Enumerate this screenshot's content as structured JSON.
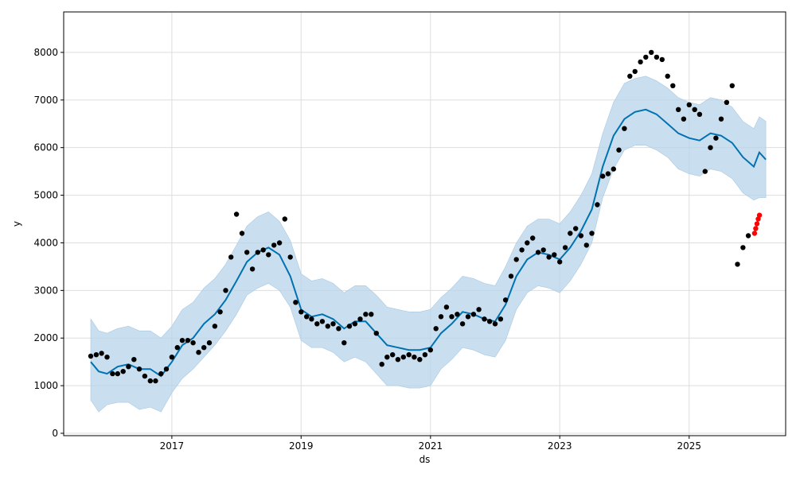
{
  "chart_data": {
    "type": "line",
    "title": "",
    "xlabel": "ds",
    "ylabel": "y",
    "xlim": [
      "2015-05-01",
      "2026-06-30"
    ],
    "ylim": [
      -50,
      8850
    ],
    "x_ticks": [
      "2017",
      "2019",
      "2021",
      "2023",
      "2025"
    ],
    "y_ticks": [
      0,
      1000,
      2000,
      3000,
      4000,
      5000,
      6000,
      7000,
      8000
    ],
    "grid": true,
    "legend": "none",
    "colors": {
      "forecast_line": "#0072B2",
      "uncertainty_band": "#b7d4ea",
      "observed_points": "#000000",
      "recent_points": "#ff0000"
    },
    "series": [
      {
        "kind": "forecast",
        "x": [
          "2015-10-01",
          "2015-11-15",
          "2016-01-01",
          "2016-03-01",
          "2016-05-01",
          "2016-07-01",
          "2016-09-01",
          "2016-11-01",
          "2017-01-01",
          "2017-03-01",
          "2017-05-01",
          "2017-07-01",
          "2017-09-01",
          "2017-11-01",
          "2018-01-01",
          "2018-03-01",
          "2018-05-01",
          "2018-07-01",
          "2018-09-01",
          "2018-11-01",
          "2019-01-01",
          "2019-03-01",
          "2019-05-01",
          "2019-07-01",
          "2019-09-01",
          "2019-11-01",
          "2020-01-01",
          "2020-03-01",
          "2020-05-01",
          "2020-07-01",
          "2020-09-01",
          "2020-11-01",
          "2021-01-01",
          "2021-03-01",
          "2021-05-01",
          "2021-07-01",
          "2021-09-01",
          "2021-11-01",
          "2022-01-01",
          "2022-03-01",
          "2022-05-01",
          "2022-07-01",
          "2022-09-01",
          "2022-11-01",
          "2023-01-01",
          "2023-03-01",
          "2023-05-01",
          "2023-07-01",
          "2023-09-01",
          "2023-11-01",
          "2024-01-01",
          "2024-03-01",
          "2024-05-01",
          "2024-07-01",
          "2024-09-01",
          "2024-11-01",
          "2025-01-01",
          "2025-03-01",
          "2025-05-01",
          "2025-07-01",
          "2025-09-01",
          "2025-11-01",
          "2026-01-01",
          "2026-02-01",
          "2026-03-10"
        ],
        "y": [
          1500,
          1300,
          1250,
          1400,
          1450,
          1350,
          1350,
          1200,
          1500,
          1850,
          2000,
          2300,
          2500,
          2800,
          3200,
          3600,
          3800,
          3900,
          3750,
          3300,
          2600,
          2450,
          2500,
          2400,
          2200,
          2350,
          2350,
          2100,
          1850,
          1800,
          1750,
          1750,
          1800,
          2100,
          2300,
          2550,
          2500,
          2400,
          2350,
          2700,
          3300,
          3650,
          3800,
          3750,
          3650,
          3900,
          4250,
          4700,
          5600,
          6250,
          6600,
          6750,
          6800,
          6700,
          6500,
          6300,
          6200,
          6150,
          6300,
          6250,
          6100,
          5800,
          5600,
          5900,
          5750
        ]
      },
      {
        "kind": "observed",
        "x": [
          "2015-10-01",
          "2015-11-01",
          "2015-12-01",
          "2016-01-01",
          "2016-02-01",
          "2016-03-01",
          "2016-04-01",
          "2016-05-01",
          "2016-06-01",
          "2016-07-01",
          "2016-08-01",
          "2016-09-01",
          "2016-10-01",
          "2016-11-01",
          "2016-12-01",
          "2017-01-01",
          "2017-02-01",
          "2017-03-01",
          "2017-04-01",
          "2017-05-01",
          "2017-06-01",
          "2017-07-01",
          "2017-08-01",
          "2017-09-01",
          "2017-10-01",
          "2017-11-01",
          "2017-12-01",
          "2018-01-01",
          "2018-02-01",
          "2018-03-01",
          "2018-04-01",
          "2018-05-01",
          "2018-06-01",
          "2018-07-01",
          "2018-08-01",
          "2018-09-01",
          "2018-10-01",
          "2018-11-01",
          "2018-12-01",
          "2019-01-01",
          "2019-02-01",
          "2019-03-01",
          "2019-04-01",
          "2019-05-01",
          "2019-06-01",
          "2019-07-01",
          "2019-08-01",
          "2019-09-01",
          "2019-10-01",
          "2019-11-01",
          "2019-12-01",
          "2020-01-01",
          "2020-02-01",
          "2020-03-01",
          "2020-04-01",
          "2020-05-01",
          "2020-06-01",
          "2020-07-01",
          "2020-08-01",
          "2020-09-01",
          "2020-10-01",
          "2020-11-01",
          "2020-12-01",
          "2021-01-01",
          "2021-02-01",
          "2021-03-01",
          "2021-04-01",
          "2021-05-01",
          "2021-06-01",
          "2021-07-01",
          "2021-08-01",
          "2021-09-01",
          "2021-10-01",
          "2021-11-01",
          "2021-12-01",
          "2022-01-01",
          "2022-02-01",
          "2022-03-01",
          "2022-04-01",
          "2022-05-01",
          "2022-06-01",
          "2022-07-01",
          "2022-08-01",
          "2022-09-01",
          "2022-10-01",
          "2022-11-01",
          "2022-12-01",
          "2023-01-01",
          "2023-02-01",
          "2023-03-01",
          "2023-04-01",
          "2023-05-01",
          "2023-06-01",
          "2023-07-01",
          "2023-08-01",
          "2023-09-01",
          "2023-10-01",
          "2023-11-01",
          "2023-12-01",
          "2024-01-01",
          "2024-02-01",
          "2024-03-01",
          "2024-04-01",
          "2024-05-01",
          "2024-06-01",
          "2024-07-01",
          "2024-08-01",
          "2024-09-01",
          "2024-10-01",
          "2024-11-01",
          "2024-12-01",
          "2025-01-01",
          "2025-02-01",
          "2025-03-01",
          "2025-04-01",
          "2025-05-01",
          "2025-06-01",
          "2025-07-01",
          "2025-08-01",
          "2025-09-01",
          "2025-10-01",
          "2025-11-01",
          "2025-12-01"
        ],
        "y": [
          1620,
          1650,
          1680,
          1600,
          1250,
          1250,
          1300,
          1400,
          1550,
          1350,
          1200,
          1100,
          1100,
          1250,
          1350,
          1600,
          1800,
          1950,
          1950,
          1900,
          1700,
          1800,
          1900,
          2250,
          2550,
          3000,
          3700,
          4600,
          4200,
          3800,
          3450,
          3800,
          3850,
          3750,
          3950,
          4000,
          4500,
          3700,
          2750,
          2550,
          2450,
          2400,
          2300,
          2350,
          2250,
          2300,
          2200,
          1900,
          2250,
          2300,
          2400,
          2500,
          2500,
          2100,
          1450,
          1600,
          1650,
          1550,
          1600,
          1650,
          1600,
          1550,
          1650,
          1750,
          2200,
          2450,
          2650,
          2450,
          2500,
          2300,
          2450,
          2500,
          2600,
          2400,
          2350,
          2300,
          2400,
          2800,
          3300,
          3650,
          3850,
          4000,
          4100,
          3800,
          3850,
          3700,
          3750,
          3600,
          3900,
          4200,
          4300,
          4150,
          3950,
          4200,
          4800,
          5400,
          5450,
          5550,
          5950,
          6400,
          7500,
          7600,
          7800,
          7900,
          8000,
          7900,
          7850,
          7500,
          7300,
          6800,
          6600,
          6900,
          6800,
          6700,
          5500,
          6000,
          6200,
          6600,
          6950,
          7300,
          3550,
          3900,
          4150
        ]
      },
      {
        "kind": "recent",
        "x": [
          "2026-01-05",
          "2026-01-12",
          "2026-01-19",
          "2026-01-26",
          "2026-02-02"
        ],
        "y": [
          4200,
          4300,
          4400,
          4500,
          4580
        ]
      },
      {
        "kind": "uncertainty_lower",
        "x": [
          "2015-10-01",
          "2015-11-15",
          "2016-01-01",
          "2016-03-01",
          "2016-05-01",
          "2016-07-01",
          "2016-09-01",
          "2016-11-01",
          "2017-01-01",
          "2017-03-01",
          "2017-05-01",
          "2017-07-01",
          "2017-09-01",
          "2017-11-01",
          "2018-01-01",
          "2018-03-01",
          "2018-05-01",
          "2018-07-01",
          "2018-09-01",
          "2018-11-01",
          "2019-01-01",
          "2019-03-01",
          "2019-05-01",
          "2019-07-01",
          "2019-09-01",
          "2019-11-01",
          "2020-01-01",
          "2020-03-01",
          "2020-05-01",
          "2020-07-01",
          "2020-09-01",
          "2020-11-01",
          "2021-01-01",
          "2021-03-01",
          "2021-05-01",
          "2021-07-01",
          "2021-09-01",
          "2021-11-01",
          "2022-01-01",
          "2022-03-01",
          "2022-05-01",
          "2022-07-01",
          "2022-09-01",
          "2022-11-01",
          "2023-01-01",
          "2023-03-01",
          "2023-05-01",
          "2023-07-01",
          "2023-09-01",
          "2023-11-01",
          "2024-01-01",
          "2024-03-01",
          "2024-05-01",
          "2024-07-01",
          "2024-09-01",
          "2024-11-01",
          "2025-01-01",
          "2025-03-01",
          "2025-05-01",
          "2025-07-01",
          "2025-09-01",
          "2025-11-01",
          "2026-01-01",
          "2026-02-01",
          "2026-03-10"
        ],
        "y": [
          700,
          450,
          600,
          650,
          650,
          500,
          550,
          450,
          850,
          1150,
          1350,
          1600,
          1850,
          2150,
          2500,
          2900,
          3050,
          3150,
          3000,
          2650,
          1950,
          1800,
          1800,
          1700,
          1500,
          1600,
          1500,
          1250,
          1000,
          1000,
          950,
          950,
          1000,
          1350,
          1550,
          1800,
          1750,
          1650,
          1600,
          1950,
          2600,
          2950,
          3100,
          3050,
          2950,
          3200,
          3550,
          4000,
          4950,
          5550,
          5950,
          6050,
          6050,
          5950,
          5800,
          5550,
          5450,
          5400,
          5550,
          5500,
          5350,
          5050,
          4900,
          4950,
          4950
        ]
      },
      {
        "kind": "uncertainty_upper",
        "x": [
          "2015-10-01",
          "2015-11-15",
          "2016-01-01",
          "2016-03-01",
          "2016-05-01",
          "2016-07-01",
          "2016-09-01",
          "2016-11-01",
          "2017-01-01",
          "2017-03-01",
          "2017-05-01",
          "2017-07-01",
          "2017-09-01",
          "2017-11-01",
          "2018-01-01",
          "2018-03-01",
          "2018-05-01",
          "2018-07-01",
          "2018-09-01",
          "2018-11-01",
          "2019-01-01",
          "2019-03-01",
          "2019-05-01",
          "2019-07-01",
          "2019-09-01",
          "2019-11-01",
          "2020-01-01",
          "2020-03-01",
          "2020-05-01",
          "2020-07-01",
          "2020-09-01",
          "2020-11-01",
          "2021-01-01",
          "2021-03-01",
          "2021-05-01",
          "2021-07-01",
          "2021-09-01",
          "2021-11-01",
          "2022-01-01",
          "2022-03-01",
          "2022-05-01",
          "2022-07-01",
          "2022-09-01",
          "2022-11-01",
          "2023-01-01",
          "2023-03-01",
          "2023-05-01",
          "2023-07-01",
          "2023-09-01",
          "2023-11-01",
          "2024-01-01",
          "2024-03-01",
          "2024-05-01",
          "2024-07-01",
          "2024-09-01",
          "2024-11-01",
          "2025-01-01",
          "2025-03-01",
          "2025-05-01",
          "2025-07-01",
          "2025-09-01",
          "2025-11-01",
          "2026-01-01",
          "2026-02-01",
          "2026-03-10"
        ],
        "y": [
          2400,
          2150,
          2100,
          2200,
          2250,
          2150,
          2150,
          2000,
          2250,
          2600,
          2750,
          3050,
          3250,
          3550,
          3950,
          4350,
          4550,
          4650,
          4450,
          4050,
          3350,
          3200,
          3250,
          3150,
          2950,
          3100,
          3100,
          2900,
          2650,
          2600,
          2550,
          2550,
          2600,
          2850,
          3050,
          3300,
          3250,
          3150,
          3100,
          3500,
          4000,
          4350,
          4500,
          4500,
          4400,
          4650,
          5000,
          5450,
          6300,
          6950,
          7350,
          7450,
          7500,
          7400,
          7250,
          7050,
          6950,
          6900,
          7050,
          7000,
          6850,
          6550,
          6400,
          6650,
          6550
        ]
      }
    ]
  }
}
